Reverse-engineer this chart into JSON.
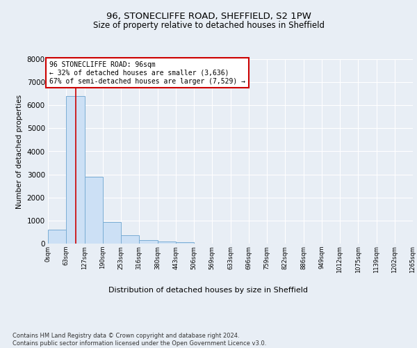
{
  "title1": "96, STONECLIFFE ROAD, SHEFFIELD, S2 1PW",
  "title2": "Size of property relative to detached houses in Sheffield",
  "xlabel": "Distribution of detached houses by size in Sheffield",
  "ylabel": "Number of detached properties",
  "bin_edges": [
    0,
    63,
    127,
    190,
    253,
    316,
    380,
    443,
    506,
    569,
    633,
    696,
    759,
    822,
    886,
    949,
    1012,
    1075,
    1139,
    1202,
    1265
  ],
  "bar_heights": [
    600,
    6400,
    2900,
    950,
    350,
    150,
    100,
    70,
    0,
    0,
    0,
    0,
    0,
    0,
    0,
    0,
    0,
    0,
    0,
    0
  ],
  "bar_color": "#cce0f5",
  "bar_edge_color": "#7aadd4",
  "property_size": 96,
  "red_line_color": "#cc0000",
  "annotation_line1": "96 STONECLIFFE ROAD: 96sqm",
  "annotation_line2": "← 32% of detached houses are smaller (3,636)",
  "annotation_line3": "67% of semi-detached houses are larger (7,529) →",
  "annotation_box_edgecolor": "#cc0000",
  "ylim": [
    0,
    8000
  ],
  "yticks": [
    0,
    1000,
    2000,
    3000,
    4000,
    5000,
    6000,
    7000,
    8000
  ],
  "footer_line1": "Contains HM Land Registry data © Crown copyright and database right 2024.",
  "footer_line2": "Contains public sector information licensed under the Open Government Licence v3.0.",
  "bg_color": "#e8eef5",
  "grid_color": "#ffffff",
  "title1_fontsize": 9.5,
  "title2_fontsize": 8.5,
  "ylabel_fontsize": 7.5,
  "xlabel_fontsize": 8,
  "ytick_fontsize": 7.5,
  "xtick_fontsize": 6,
  "annotation_fontsize": 7,
  "footer_fontsize": 6
}
